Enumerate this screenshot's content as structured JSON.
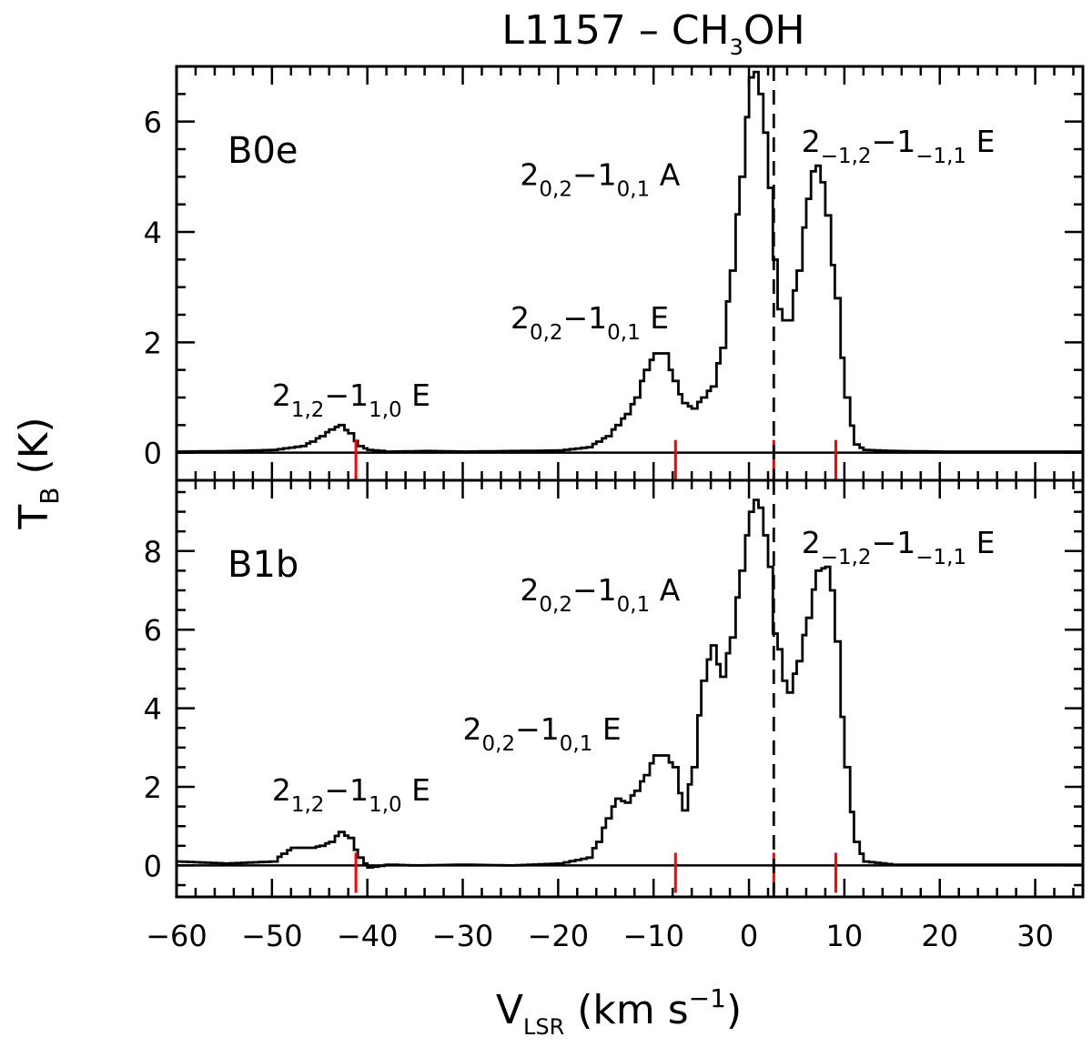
{
  "chart_data": {
    "type": "line",
    "title_main": "L1157 – CH",
    "title_sub": "3",
    "title_end": "OH",
    "xlabel_main": "V",
    "xlabel_sub": "LSR",
    "xlabel_unit": " (km s",
    "xlabel_sup": "−1",
    "xlabel_close": ")",
    "ylabel_main": "T",
    "ylabel_sub": "B",
    "ylabel_unit": " (K)",
    "xlim": [
      -60,
      35
    ],
    "xticks": [
      "−60",
      "−50",
      "−40",
      "−30",
      "−20",
      "−10",
      "0",
      "10",
      "20",
      "30"
    ],
    "xtick_values": [
      -60,
      -50,
      -40,
      -30,
      -20,
      -10,
      0,
      10,
      20,
      30
    ],
    "vsys": 2.6,
    "line_markers": [
      -41.2,
      -7.7,
      2.6,
      9.1
    ],
    "panels": [
      {
        "name": "B0e",
        "ylim": [
          -0.5,
          7
        ],
        "yticks": [
          "0",
          "2",
          "4",
          "6"
        ],
        "ytick_values": [
          0,
          2,
          4,
          6
        ],
        "labels": [
          {
            "pre": "2",
            "sub1": "1,2",
            "mid": "−1",
            "sub2": "1,0",
            "post": " E",
            "vx": -50,
            "vy": 0.85
          },
          {
            "pre": "2",
            "sub1": "0,2",
            "mid": "−1",
            "sub2": "0,1",
            "post": " E",
            "vx": -25,
            "vy": 2.25
          },
          {
            "pre": "2",
            "sub1": "0,2",
            "mid": "−1",
            "sub2": "0,1",
            "post": " A",
            "vx": -24,
            "vy": 4.85
          },
          {
            "pre": "2",
            "sub1": "−1,2",
            "mid": "−1",
            "sub2": "−1,1",
            "post": " E",
            "vx": 5.5,
            "vy": 5.45
          }
        ],
        "spectrum": {
          "v": [
            -60,
            -54,
            -50,
            -47,
            -46,
            -45,
            -44,
            -43,
            -42,
            -41,
            -40,
            -38,
            -34,
            -30,
            -25,
            -20,
            -17,
            -16,
            -15,
            -14,
            -13,
            -12,
            -11,
            -10,
            -9,
            -8,
            -7,
            -6,
            -5,
            -4,
            -3,
            -2,
            -1,
            0,
            0.5,
            1,
            1.5,
            2,
            2.5,
            3,
            3.5,
            4,
            5,
            6,
            6.5,
            7,
            7.5,
            8,
            9,
            10,
            11,
            12,
            15,
            20,
            25,
            30,
            35
          ],
          "t": [
            0.02,
            0.03,
            0.05,
            0.12,
            0.2,
            0.3,
            0.42,
            0.5,
            0.35,
            0.12,
            0.05,
            0.02,
            0.03,
            0.02,
            0.03,
            0.04,
            0.1,
            0.2,
            0.3,
            0.5,
            0.7,
            1.0,
            1.5,
            1.8,
            1.8,
            1.3,
            0.9,
            0.8,
            1.0,
            1.2,
            1.9,
            3.3,
            5.0,
            6.8,
            6.9,
            6.5,
            5.8,
            4.8,
            3.5,
            2.6,
            2.4,
            2.4,
            3.3,
            4.6,
            5.1,
            5.2,
            4.9,
            4.3,
            2.8,
            1.0,
            0.15,
            0.05,
            0.03,
            0.02,
            0.02,
            0.02,
            0.02
          ]
        }
      },
      {
        "name": "B1b",
        "ylim": [
          -0.8,
          9.8
        ],
        "yticks": [
          "0",
          "2",
          "4",
          "6",
          "8"
        ],
        "ytick_values": [
          0,
          2,
          4,
          6,
          8
        ],
        "labels": [
          {
            "pre": "2",
            "sub1": "1,2",
            "mid": "−1",
            "sub2": "1,0",
            "post": " E",
            "vx": -50,
            "vy": 1.65
          },
          {
            "pre": "2",
            "sub1": "0,2",
            "mid": "−1",
            "sub2": "0,1",
            "post": " E",
            "vx": -30,
            "vy": 3.2
          },
          {
            "pre": "2",
            "sub1": "0,2",
            "mid": "−1",
            "sub2": "0,1",
            "post": " A",
            "vx": -24,
            "vy": 6.75
          },
          {
            "pre": "2",
            "sub1": "−1,2",
            "mid": "−1",
            "sub2": "−1,1",
            "post": " E",
            "vx": 5.5,
            "vy": 7.95
          }
        ],
        "spectrum": {
          "v": [
            -60,
            -55,
            -50,
            -49,
            -48,
            -47,
            -46,
            -45,
            -44,
            -43,
            -42,
            -41,
            -40,
            -38,
            -35,
            -30,
            -25,
            -20,
            -17,
            -16,
            -15,
            -14,
            -13,
            -12,
            -11,
            -10,
            -9,
            -8,
            -7,
            -6,
            -5,
            -4,
            -3,
            -2,
            -1,
            0,
            0.5,
            1,
            1.5,
            2,
            2.5,
            3,
            3.5,
            4,
            5,
            6,
            7,
            8,
            8.5,
            9,
            10,
            11,
            12,
            15,
            20,
            25,
            30,
            35
          ],
          "t": [
            0.1,
            0.05,
            0.1,
            0.3,
            0.45,
            0.45,
            0.45,
            0.5,
            0.6,
            0.85,
            0.7,
            0.2,
            -0.05,
            0.02,
            0.0,
            0.02,
            0.0,
            0.05,
            0.2,
            0.6,
            1.2,
            1.7,
            1.6,
            1.9,
            2.3,
            2.8,
            2.8,
            2.5,
            1.4,
            2.5,
            4.7,
            5.6,
            4.8,
            5.8,
            7.5,
            9.0,
            9.3,
            9.1,
            8.4,
            7.6,
            5.9,
            5.5,
            4.7,
            4.4,
            5.2,
            6.3,
            7.5,
            7.6,
            7.0,
            5.7,
            2.5,
            0.6,
            0.1,
            0.02,
            0.02,
            0.02,
            0.02,
            0.02
          ]
        }
      }
    ]
  }
}
